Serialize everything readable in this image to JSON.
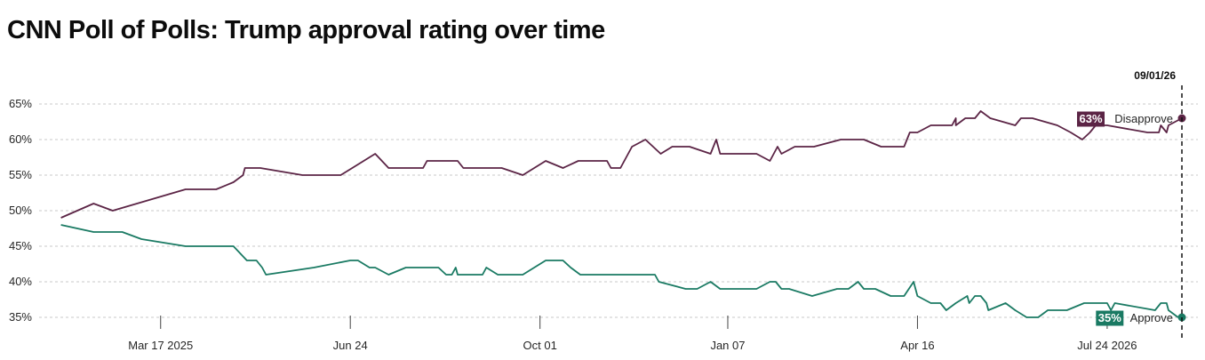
{
  "chart_data": {
    "type": "line",
    "title": "CNN Poll of Polls: Trump approval rating over time",
    "xlabel": "",
    "ylabel": "",
    "ylim": [
      33.5,
      66.5
    ],
    "y_ticks": [
      "65%",
      "60%",
      "55%",
      "50%",
      "45%",
      "40%",
      "35%"
    ],
    "y_tick_values": [
      65,
      60,
      55,
      50,
      45,
      40,
      35
    ],
    "x_range": [
      "2025-01-20",
      "2026-09-01"
    ],
    "x_ticks": [
      {
        "date": "2025-03-17",
        "label": "Mar 17 2025"
      },
      {
        "date": "2025-06-24",
        "label": "Jun 24"
      },
      {
        "date": "2025-10-01",
        "label": "Oct 01"
      },
      {
        "date": "2026-01-07",
        "label": "Jan 07"
      },
      {
        "date": "2026-04-16",
        "label": "Apr 16"
      },
      {
        "date": "2026-07-24",
        "label": "Jul 24 2026"
      }
    ],
    "grid": true,
    "current_date_label": "09/01/26",
    "series": [
      {
        "name": "Disapprove",
        "color": "#5b2445",
        "current_label": "63%",
        "points": [
          [
            "2025-01-24",
            49
          ],
          [
            "2025-02-10",
            51
          ],
          [
            "2025-02-20",
            50
          ],
          [
            "2025-03-30",
            53
          ],
          [
            "2025-04-15",
            53
          ],
          [
            "2025-04-24",
            54
          ],
          [
            "2025-04-29",
            55
          ],
          [
            "2025-04-30",
            56
          ],
          [
            "2025-05-08",
            56
          ],
          [
            "2025-05-30",
            55
          ],
          [
            "2025-06-19",
            55
          ],
          [
            "2025-06-25",
            56
          ],
          [
            "2025-07-07",
            58
          ],
          [
            "2025-07-14",
            56
          ],
          [
            "2025-08-01",
            56
          ],
          [
            "2025-08-03",
            57
          ],
          [
            "2025-08-19",
            57
          ],
          [
            "2025-08-22",
            56
          ],
          [
            "2025-09-11",
            56
          ],
          [
            "2025-09-22",
            55
          ],
          [
            "2025-09-28",
            56
          ],
          [
            "2025-10-04",
            57
          ],
          [
            "2025-10-13",
            56
          ],
          [
            "2025-10-21",
            57
          ],
          [
            "2025-11-05",
            57
          ],
          [
            "2025-11-07",
            56
          ],
          [
            "2025-11-12",
            56
          ],
          [
            "2025-11-18",
            59
          ],
          [
            "2025-11-25",
            60
          ],
          [
            "2025-12-03",
            58
          ],
          [
            "2025-12-09",
            59
          ],
          [
            "2025-12-18",
            59
          ],
          [
            "2025-12-29",
            58
          ],
          [
            "2026-01-01",
            60
          ],
          [
            "2026-01-03",
            58
          ],
          [
            "2026-01-22",
            58
          ],
          [
            "2026-01-29",
            57
          ],
          [
            "2026-02-02",
            59
          ],
          [
            "2026-02-04",
            58
          ],
          [
            "2026-02-11",
            59
          ],
          [
            "2026-02-18",
            59
          ],
          [
            "2026-02-21",
            59
          ],
          [
            "2026-03-07",
            60
          ],
          [
            "2026-03-19",
            60
          ],
          [
            "2026-03-28",
            59
          ],
          [
            "2026-04-09",
            59
          ],
          [
            "2026-04-12",
            61
          ],
          [
            "2026-04-16",
            61
          ],
          [
            "2026-04-23",
            62
          ],
          [
            "2026-05-04",
            62
          ],
          [
            "2026-05-06",
            63
          ],
          [
            "2026-05-06",
            62
          ],
          [
            "2026-05-11",
            63
          ],
          [
            "2026-05-16",
            63
          ],
          [
            "2026-05-19",
            64
          ],
          [
            "2026-05-24",
            63
          ],
          [
            "2026-06-06",
            62
          ],
          [
            "2026-06-09",
            63
          ],
          [
            "2026-06-15",
            63
          ],
          [
            "2026-06-28",
            62
          ],
          [
            "2026-07-05",
            61
          ],
          [
            "2026-07-11",
            60
          ],
          [
            "2026-07-15",
            61
          ],
          [
            "2026-07-18",
            62
          ],
          [
            "2026-07-24",
            62
          ],
          [
            "2026-08-14",
            61
          ],
          [
            "2026-08-20",
            61
          ],
          [
            "2026-08-21",
            62
          ],
          [
            "2026-08-24",
            61
          ],
          [
            "2026-08-25",
            62
          ],
          [
            "2026-09-01",
            63
          ]
        ]
      },
      {
        "name": "Approve",
        "color": "#1a7a63",
        "current_label": "35%",
        "points": [
          [
            "2025-01-24",
            48
          ],
          [
            "2025-02-10",
            47
          ],
          [
            "2025-02-25",
            47
          ],
          [
            "2025-03-07",
            46
          ],
          [
            "2025-03-30",
            45
          ],
          [
            "2025-04-24",
            45
          ],
          [
            "2025-05-01",
            43
          ],
          [
            "2025-05-06",
            43
          ],
          [
            "2025-05-09",
            42
          ],
          [
            "2025-05-11",
            41
          ],
          [
            "2025-06-05",
            42
          ],
          [
            "2025-06-24",
            43
          ],
          [
            "2025-06-28",
            43
          ],
          [
            "2025-07-04",
            42
          ],
          [
            "2025-07-07",
            42
          ],
          [
            "2025-07-14",
            41
          ],
          [
            "2025-07-23",
            42
          ],
          [
            "2025-08-09",
            42
          ],
          [
            "2025-08-13",
            41
          ],
          [
            "2025-08-16",
            41
          ],
          [
            "2025-08-18",
            42
          ],
          [
            "2025-08-19",
            41
          ],
          [
            "2025-09-01",
            41
          ],
          [
            "2025-09-03",
            42
          ],
          [
            "2025-09-09",
            41
          ],
          [
            "2025-09-22",
            41
          ],
          [
            "2025-10-04",
            43
          ],
          [
            "2025-10-13",
            43
          ],
          [
            "2025-10-17",
            42
          ],
          [
            "2025-10-22",
            41
          ],
          [
            "2025-11-12",
            41
          ],
          [
            "2025-11-30",
            41
          ],
          [
            "2025-12-02",
            40
          ],
          [
            "2025-12-16",
            39
          ],
          [
            "2025-12-22",
            39
          ],
          [
            "2025-12-29",
            40
          ],
          [
            "2026-01-03",
            39
          ],
          [
            "2026-01-22",
            39
          ],
          [
            "2026-01-29",
            40
          ],
          [
            "2026-02-01",
            40
          ],
          [
            "2026-02-04",
            39
          ],
          [
            "2026-02-08",
            39
          ],
          [
            "2026-02-20",
            38
          ],
          [
            "2026-03-05",
            39
          ],
          [
            "2026-03-11",
            39
          ],
          [
            "2026-03-16",
            40
          ],
          [
            "2026-03-19",
            39
          ],
          [
            "2026-03-25",
            39
          ],
          [
            "2026-04-02",
            38
          ],
          [
            "2026-04-09",
            38
          ],
          [
            "2026-04-14",
            40
          ],
          [
            "2026-04-16",
            38
          ],
          [
            "2026-04-23",
            37
          ],
          [
            "2026-04-28",
            37
          ],
          [
            "2026-05-01",
            36
          ],
          [
            "2026-05-06",
            37
          ],
          [
            "2026-05-12",
            38
          ],
          [
            "2026-05-13",
            37
          ],
          [
            "2026-05-16",
            38
          ],
          [
            "2026-05-19",
            38
          ],
          [
            "2026-05-22",
            37
          ],
          [
            "2026-05-23",
            36
          ],
          [
            "2026-06-01",
            37
          ],
          [
            "2026-06-06",
            36
          ],
          [
            "2026-06-12",
            35
          ],
          [
            "2026-06-18",
            35
          ],
          [
            "2026-06-23",
            36
          ],
          [
            "2026-07-03",
            36
          ],
          [
            "2026-07-12",
            37
          ],
          [
            "2026-07-24",
            37
          ],
          [
            "2026-07-26",
            36
          ],
          [
            "2026-07-28",
            37
          ],
          [
            "2026-08-18",
            36
          ],
          [
            "2026-08-21",
            37
          ],
          [
            "2026-08-24",
            37
          ],
          [
            "2026-08-25",
            36
          ],
          [
            "2026-08-30",
            35
          ]
        ]
      }
    ]
  }
}
